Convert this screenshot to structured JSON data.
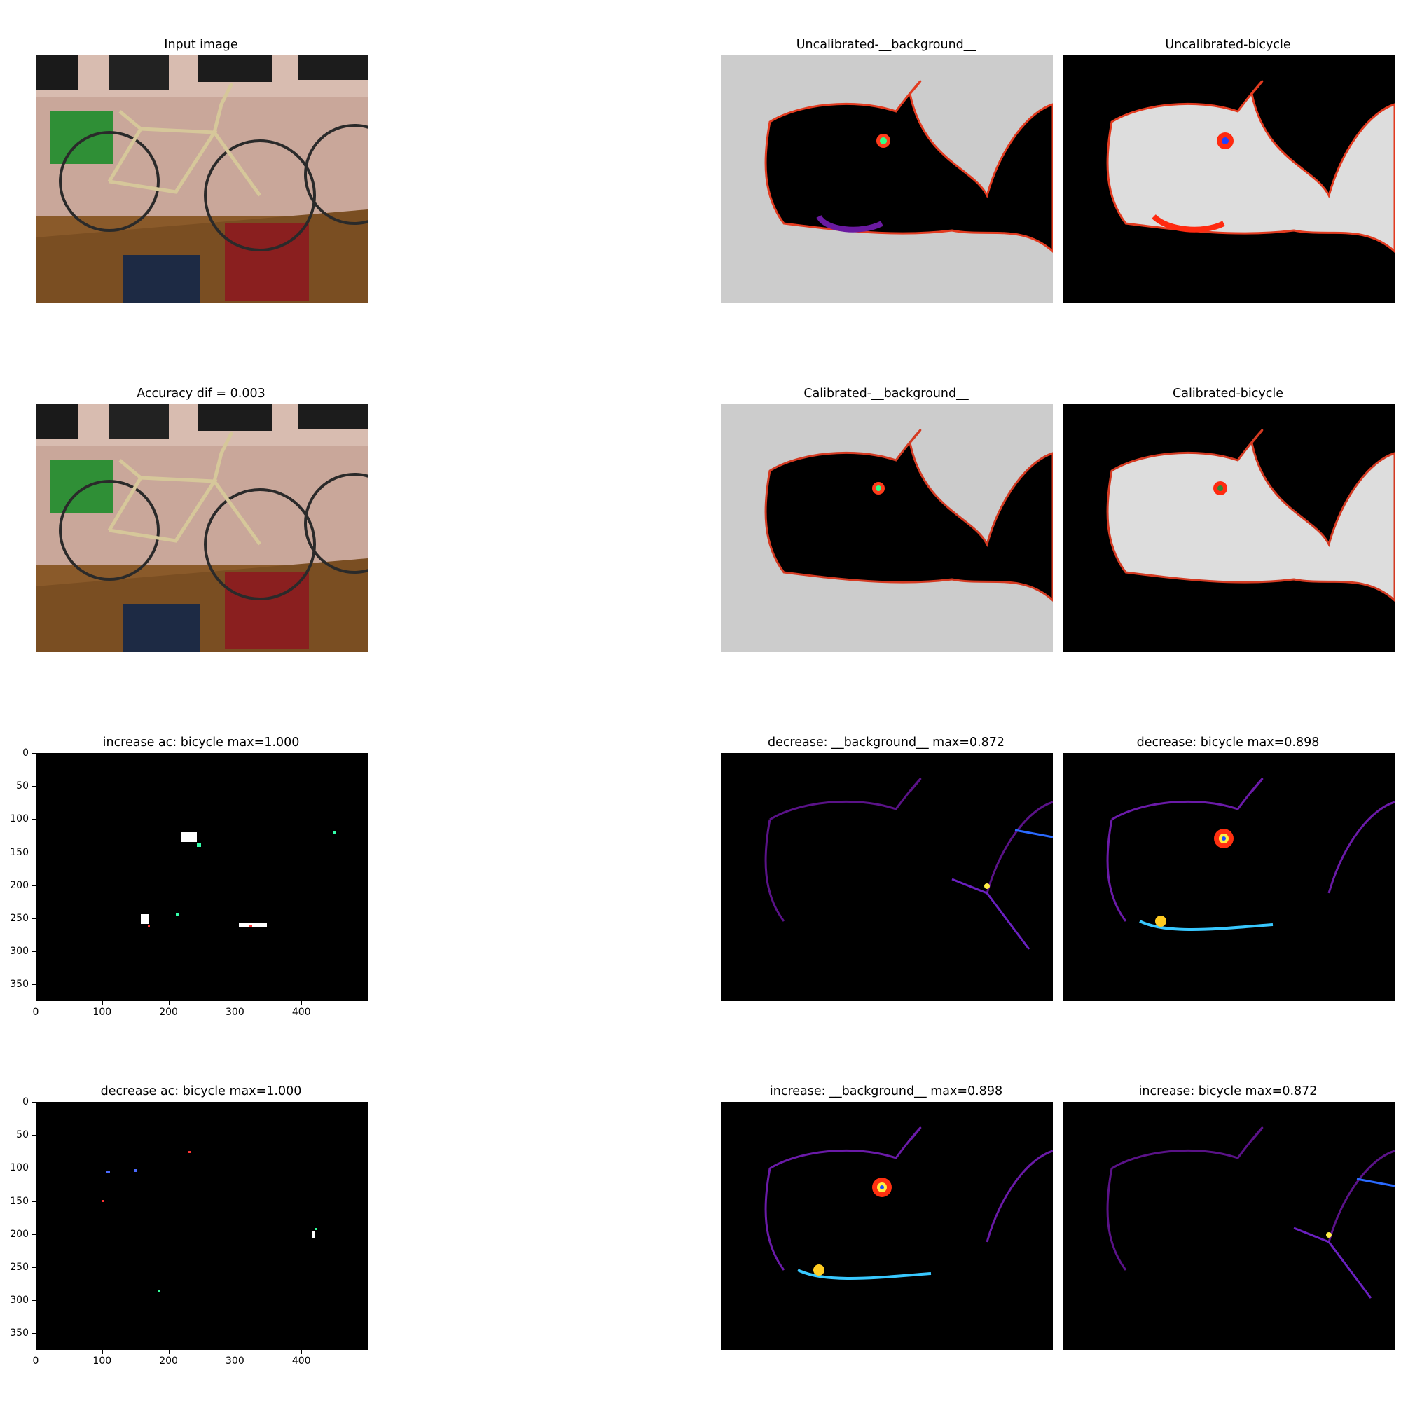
{
  "figure": {
    "panels": [
      {
        "id": "input-image",
        "title": "Input image",
        "kind": "photo"
      },
      {
        "id": "uncal-bg",
        "title": "Uncalibrated-__background__",
        "kind": "heat-bg"
      },
      {
        "id": "uncal-bicycle",
        "title": "Uncalibrated-bicycle",
        "kind": "heat-fg"
      },
      {
        "id": "accuracy-dif",
        "title": "Accuracy dif = 0.003",
        "kind": "photo"
      },
      {
        "id": "cal-bg",
        "title": "Calibrated-__background__",
        "kind": "heat-bg"
      },
      {
        "id": "cal-bicycle",
        "title": "Calibrated-bicycle",
        "kind": "heat-fg"
      },
      {
        "id": "increase-ac",
        "title": "increase ac: bicycle max=1.000",
        "kind": "sparse"
      },
      {
        "id": "decrease-bg",
        "title": "decrease: __background__ max=0.872",
        "kind": "edge"
      },
      {
        "id": "decrease-bicycle",
        "title": "decrease: bicycle max=0.898",
        "kind": "edge-strong"
      },
      {
        "id": "decrease-ac",
        "title": "decrease ac: bicycle max=1.000",
        "kind": "sparse"
      },
      {
        "id": "increase-bg",
        "title": "increase: __background__ max=0.898",
        "kind": "edge-strong"
      },
      {
        "id": "increase-bicycle",
        "title": "increase: bicycle max=0.872",
        "kind": "edge"
      }
    ]
  },
  "chart_data": {
    "type": "heatmap",
    "title": "",
    "axes_with_ticks": [
      "increase ac: bicycle max=1.000",
      "decrease ac: bicycle max=1.000"
    ],
    "x_ticks": [
      "0",
      "100",
      "200",
      "300",
      "400"
    ],
    "y_ticks": [
      "0",
      "50",
      "100",
      "150",
      "200",
      "250",
      "300",
      "350"
    ],
    "xlim": [
      0,
      500
    ],
    "ylim": [
      375,
      0
    ],
    "accuracy_dif": 0.003,
    "max_values": {
      "increase ac: bicycle": 1.0,
      "decrease ac: bicycle": 1.0,
      "decrease: __background__": 0.872,
      "decrease: bicycle": 0.898,
      "increase: __background__": 0.898,
      "increase: bicycle": 0.872
    },
    "colors": {
      "heat_bg": "#cccccc",
      "black": "#000000"
    }
  }
}
